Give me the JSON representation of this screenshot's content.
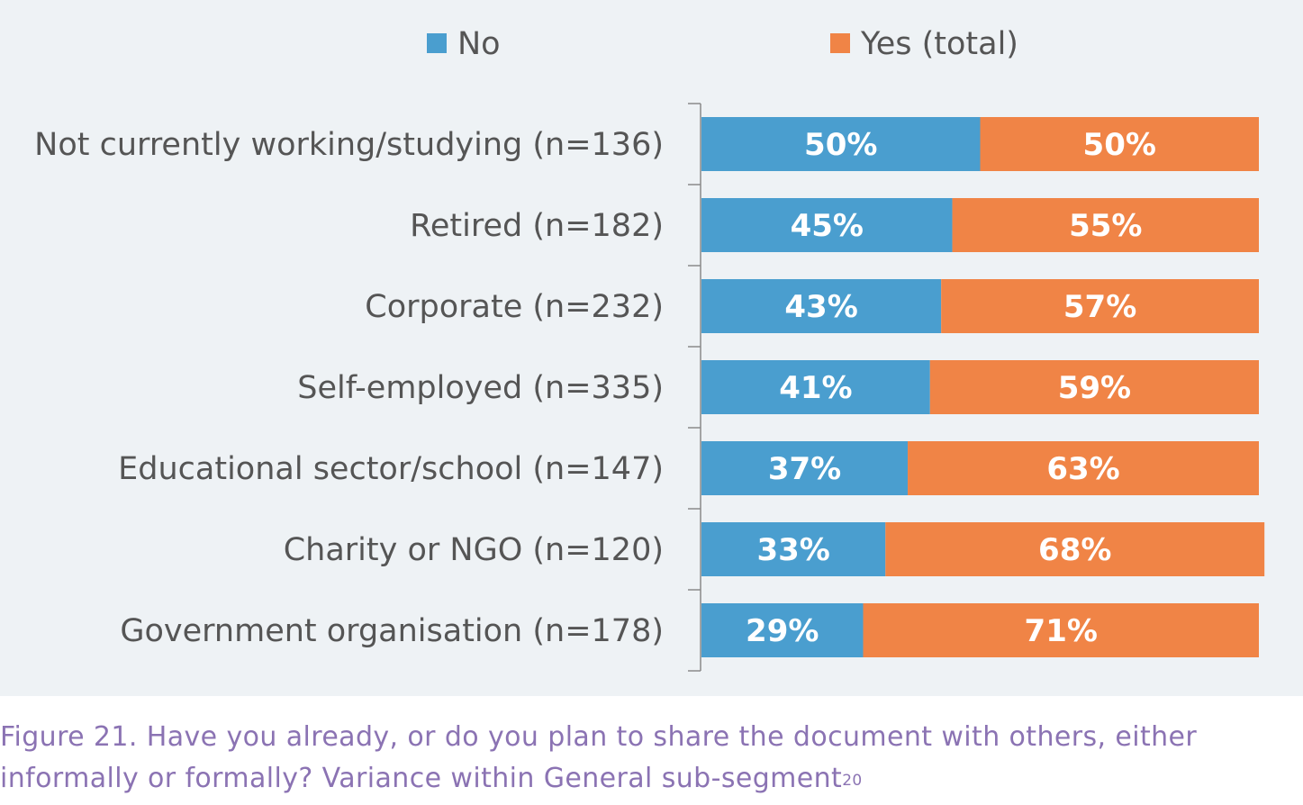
{
  "chart_data": {
    "type": "bar",
    "orientation": "horizontal",
    "stacked": true,
    "categories": [
      "Not currently working/studying (n=136)",
      "Retired (n=182)",
      "Corporate (n=232)",
      "Self-employed (n=335)",
      "Educational sector/school (n=147)",
      "Charity or NGO (n=120)",
      "Government organisation (n=178)"
    ],
    "series": [
      {
        "name": "No",
        "color": "#4a9ecf",
        "values": [
          50,
          45,
          43,
          41,
          37,
          33,
          29
        ],
        "labels": [
          "50%",
          "45%",
          "43%",
          "41%",
          "37%",
          "33%",
          "29%"
        ]
      },
      {
        "name": "Yes (total)",
        "color": "#f08446",
        "values": [
          50,
          55,
          57,
          59,
          63,
          68,
          71
        ],
        "labels": [
          "50%",
          "55%",
          "57%",
          "59%",
          "63%",
          "68%",
          "71%"
        ]
      }
    ],
    "legend_position": "top",
    "xlim": [
      0,
      100
    ],
    "grid": false
  },
  "caption": {
    "line1": "Figure 21. Have you already, or do you plan to share the document with others, either",
    "line2": "informally or formally? Variance within General sub-segment",
    "footnote": "20"
  }
}
